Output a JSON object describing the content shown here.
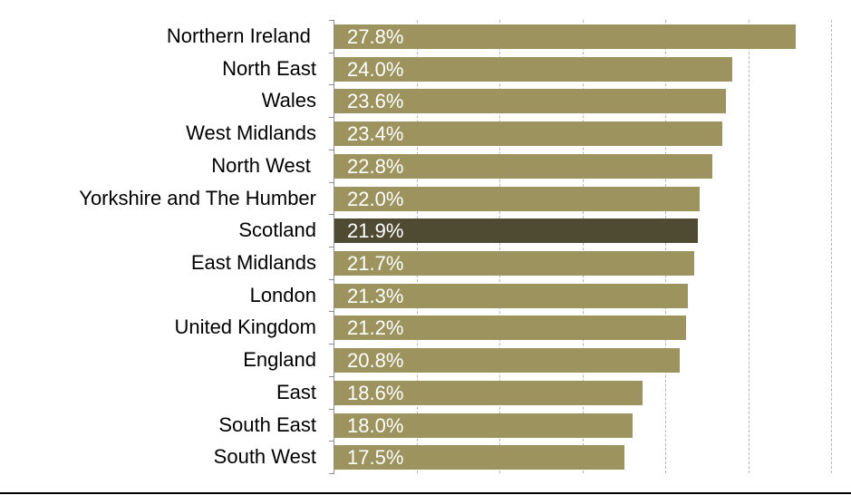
{
  "chart_data": {
    "type": "bar",
    "orientation": "horizontal",
    "title": "",
    "xlabel": "",
    "ylabel": "",
    "xlim": [
      0,
      30
    ],
    "grid": {
      "x": true,
      "y": false,
      "style": "dashed",
      "interval": 5
    },
    "legend": null,
    "categories": [
      "Northern Ireland ",
      "North East",
      "Wales",
      "West Midlands",
      "North West ",
      "Yorkshire and The Humber",
      "Scotland",
      "East Midlands",
      "London",
      "United Kingdom",
      "England",
      "East",
      "South East",
      "South West"
    ],
    "values": [
      27.8,
      24.0,
      23.6,
      23.4,
      22.8,
      22.0,
      21.9,
      21.7,
      21.3,
      21.2,
      20.8,
      18.6,
      18.0,
      17.5
    ],
    "value_labels": [
      "27.8%",
      "24.0%",
      "23.6%",
      "23.4%",
      "22.8%",
      "22.0%",
      "21.9%",
      "21.7%",
      "21.3%",
      "21.2%",
      "20.8%",
      "18.6%",
      "18.0%",
      "17.5%"
    ],
    "highlight_index": 6,
    "colors": {
      "bar": "#9c935e",
      "highlight": "#4f4a32",
      "label": "#ffffff"
    }
  }
}
